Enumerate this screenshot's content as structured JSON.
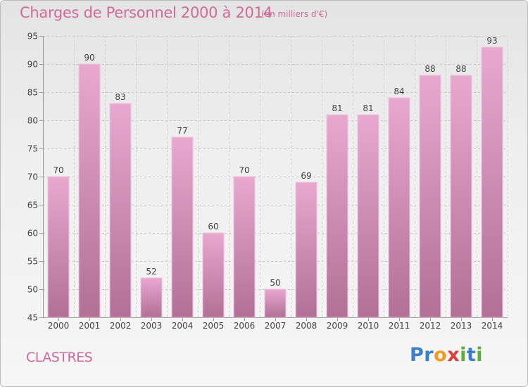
{
  "header": {
    "title": "Charges de Personnel 2000 à 2014",
    "subtitle": "(en milliers d'€)"
  },
  "footer": {
    "place": "CLASTRES",
    "logo_letters": [
      {
        "ch": "P",
        "color": "#3a7fc8"
      },
      {
        "ch": "r",
        "color": "#3a7fc8"
      },
      {
        "ch": "o",
        "color": "#f29a1f"
      },
      {
        "ch": "x",
        "color": "#e23b3b"
      },
      {
        "ch": "i",
        "color": "#5fae3a"
      },
      {
        "ch": "t",
        "color": "#3a7fc8"
      },
      {
        "ch": "i",
        "color": "#5fae3a"
      }
    ]
  },
  "colors": {
    "bar_top": "#e8a8cf",
    "bar_bottom": "#b27097",
    "accent_text": "#d06a9a",
    "axis_text": "#444444"
  },
  "chart_data": {
    "type": "bar",
    "categories": [
      "2000",
      "2001",
      "2002",
      "2003",
      "2004",
      "2005",
      "2006",
      "2007",
      "2008",
      "2009",
      "2010",
      "2011",
      "2012",
      "2013",
      "2014"
    ],
    "values": [
      70,
      90,
      83,
      52,
      77,
      60,
      70,
      50,
      69,
      81,
      81,
      84,
      88,
      88,
      93
    ],
    "value_labels": [
      "70",
      "90",
      "83",
      "52",
      "77",
      "60",
      "70",
      "50",
      "69",
      "81",
      "81",
      "84",
      "88",
      "88",
      "93"
    ],
    "ylim": [
      45,
      95
    ],
    "yticks": [
      45,
      50,
      55,
      60,
      65,
      70,
      75,
      80,
      85,
      90,
      95
    ],
    "grid": "horizontal dashed",
    "legend": "none"
  }
}
